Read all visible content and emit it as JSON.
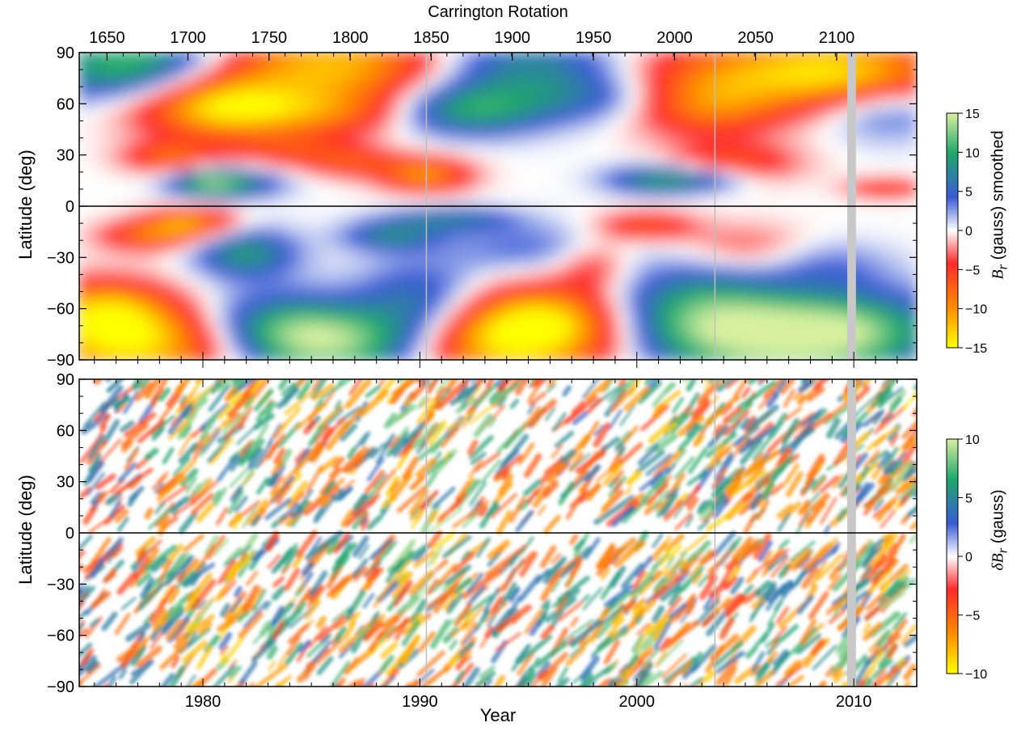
{
  "top_axis_title": "Carrington Rotation",
  "x_axis_title": "Year",
  "chart_data": [
    {
      "type": "heatmap",
      "panel": "top",
      "ylabel": "Latitude (deg)",
      "colorbar_label_prefix": "B",
      "colorbar_label_sub": "r",
      "colorbar_label_suffix": " (gauss) smoothed",
      "xlim_year": [
        1974.3,
        2012.9
      ],
      "ylim": [
        -90,
        90
      ],
      "yticks": [
        90,
        60,
        30,
        0,
        -30,
        -60,
        -90
      ],
      "ytick_labels": [
        "90",
        "60",
        "30",
        "0",
        "−30",
        "−60",
        "−90"
      ],
      "top_axis_ticks": [
        1650,
        1700,
        1750,
        1800,
        1850,
        1900,
        1950,
        2000,
        2050,
        2100
      ],
      "top_axis_ticks_year": [
        1975.58,
        1979.31,
        1983.05,
        1986.79,
        1990.52,
        1994.26,
        1998.0,
        2001.74,
        2005.47,
        2009.21
      ],
      "colorbar_range": [
        -15,
        15
      ],
      "colorbar_ticks": [
        15,
        10,
        5,
        0,
        -5,
        -10,
        -15
      ],
      "colorbar_tick_labels": [
        "15",
        "10",
        "5",
        "0",
        "−5",
        "−10",
        "−15"
      ],
      "data_gap_year": [
        2009.7,
        2010.1
      ],
      "vertical_line_years": [
        1990.3,
        2003.6
      ]
    },
    {
      "type": "heatmap",
      "panel": "bottom",
      "ylabel": "Latitude (deg)",
      "colorbar_label_prefix": "δB",
      "colorbar_label_sub": "r",
      "colorbar_label_suffix": " (gauss)",
      "xlim_year": [
        1974.3,
        2012.9
      ],
      "ylim": [
        -90,
        90
      ],
      "yticks": [
        90,
        60,
        30,
        0,
        -30,
        -60,
        -90
      ],
      "ytick_labels": [
        "90",
        "60",
        "30",
        "0",
        "−30",
        "−60",
        "−90"
      ],
      "xticks": [
        1980,
        1990,
        2000,
        2010
      ],
      "xtick_labels": [
        "1980",
        "1990",
        "2000",
        "2010"
      ],
      "colorbar_range": [
        -10,
        10
      ],
      "colorbar_ticks": [
        10,
        5,
        0,
        -5,
        -10
      ],
      "colorbar_tick_labels": [
        "10",
        "5",
        "0",
        "−5",
        "−10"
      ],
      "data_gap_year": [
        2009.7,
        2010.1
      ],
      "vertical_line_years": [
        1990.3,
        2003.6
      ]
    }
  ],
  "colormap": [
    "#ffff00",
    "#ff8c00",
    "#ff2b2b",
    "#ffffff",
    "#3b5bd6",
    "#1fa86b",
    "#d8f0a0"
  ]
}
